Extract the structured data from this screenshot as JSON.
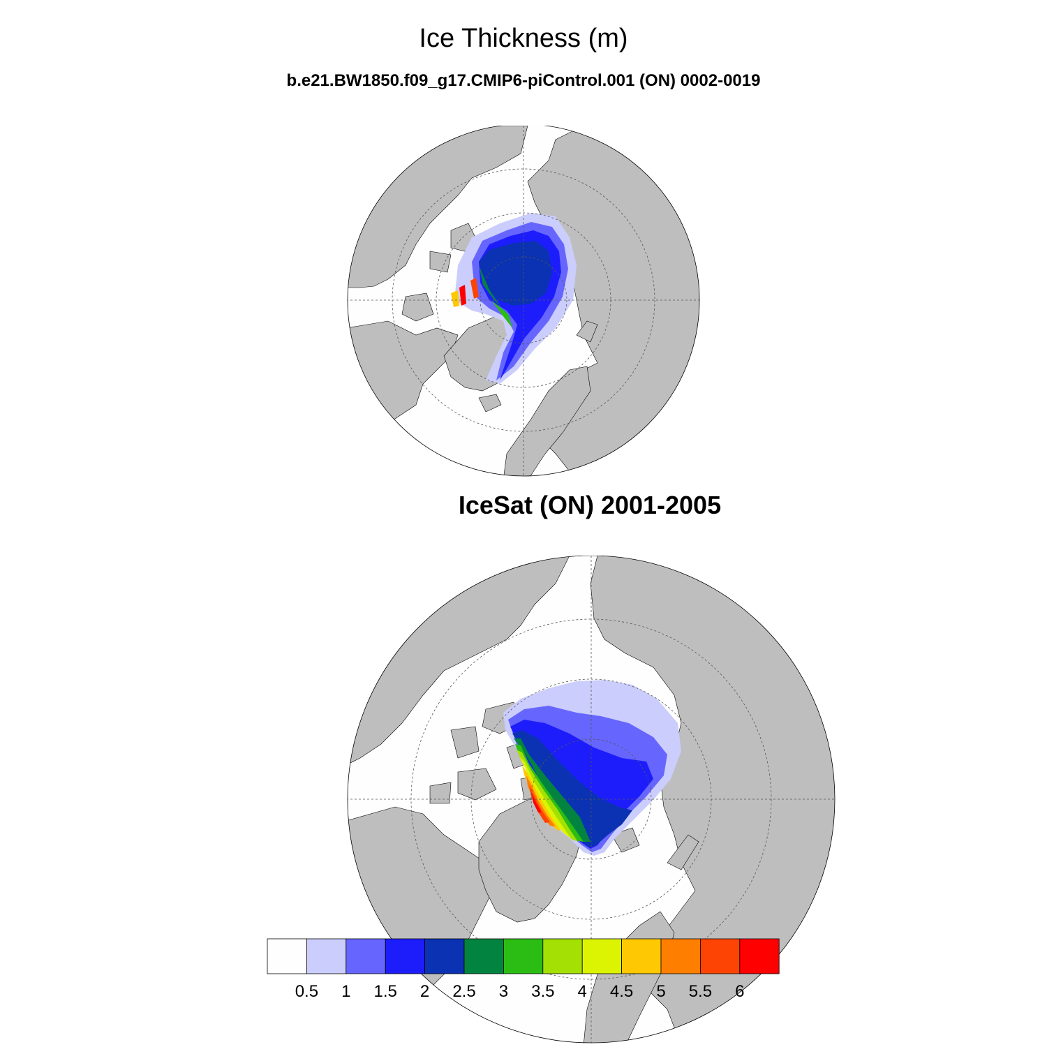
{
  "title": "Ice Thickness (m)",
  "panels": [
    {
      "subtitle": "b.e21.BW1850.f09_g17.CMIP6-piControl.001 (ON) 0002-0019"
    },
    {
      "subtitle": "IceSat (ON) 2001-2005"
    }
  ],
  "colors": {
    "land": "#bebebe",
    "ocean": "#fefefe",
    "levels": [
      "#fefefe",
      "#cbcdfc",
      "#6666ff",
      "#1d1dfc",
      "#0a32b2",
      "#028440",
      "#2cbd14",
      "#a4e004",
      "#dcf402",
      "#fec802",
      "#fe7f00",
      "#fe4404",
      "#fe0000"
    ]
  },
  "chart_data": {
    "type": "heatmap",
    "title": "Ice Thickness (m)",
    "projection": "north polar stereographic",
    "panels": [
      {
        "title": "b.e21.BW1850.f09_g17.CMIP6-piControl.001 (ON) 0002-0019",
        "variable": "ice thickness",
        "units": "m",
        "max_value": 6,
        "dominant_range": [
          1.5,
          2.5
        ]
      },
      {
        "title": "IceSat (ON) 2001-2005",
        "variable": "ice thickness",
        "units": "m",
        "max_value": 5.5,
        "dominant_range": [
          1.0,
          2.5
        ]
      }
    ],
    "colorbar": {
      "levels": [
        0.5,
        1,
        1.5,
        2,
        2.5,
        3,
        3.5,
        4,
        4.5,
        5,
        5.5,
        6
      ],
      "labels": [
        "0.5",
        "1",
        "1.5",
        "2",
        "2.5",
        "3",
        "3.5",
        "4",
        "4.5",
        "5",
        "5.5",
        "6"
      ],
      "n_bins": 13
    }
  }
}
